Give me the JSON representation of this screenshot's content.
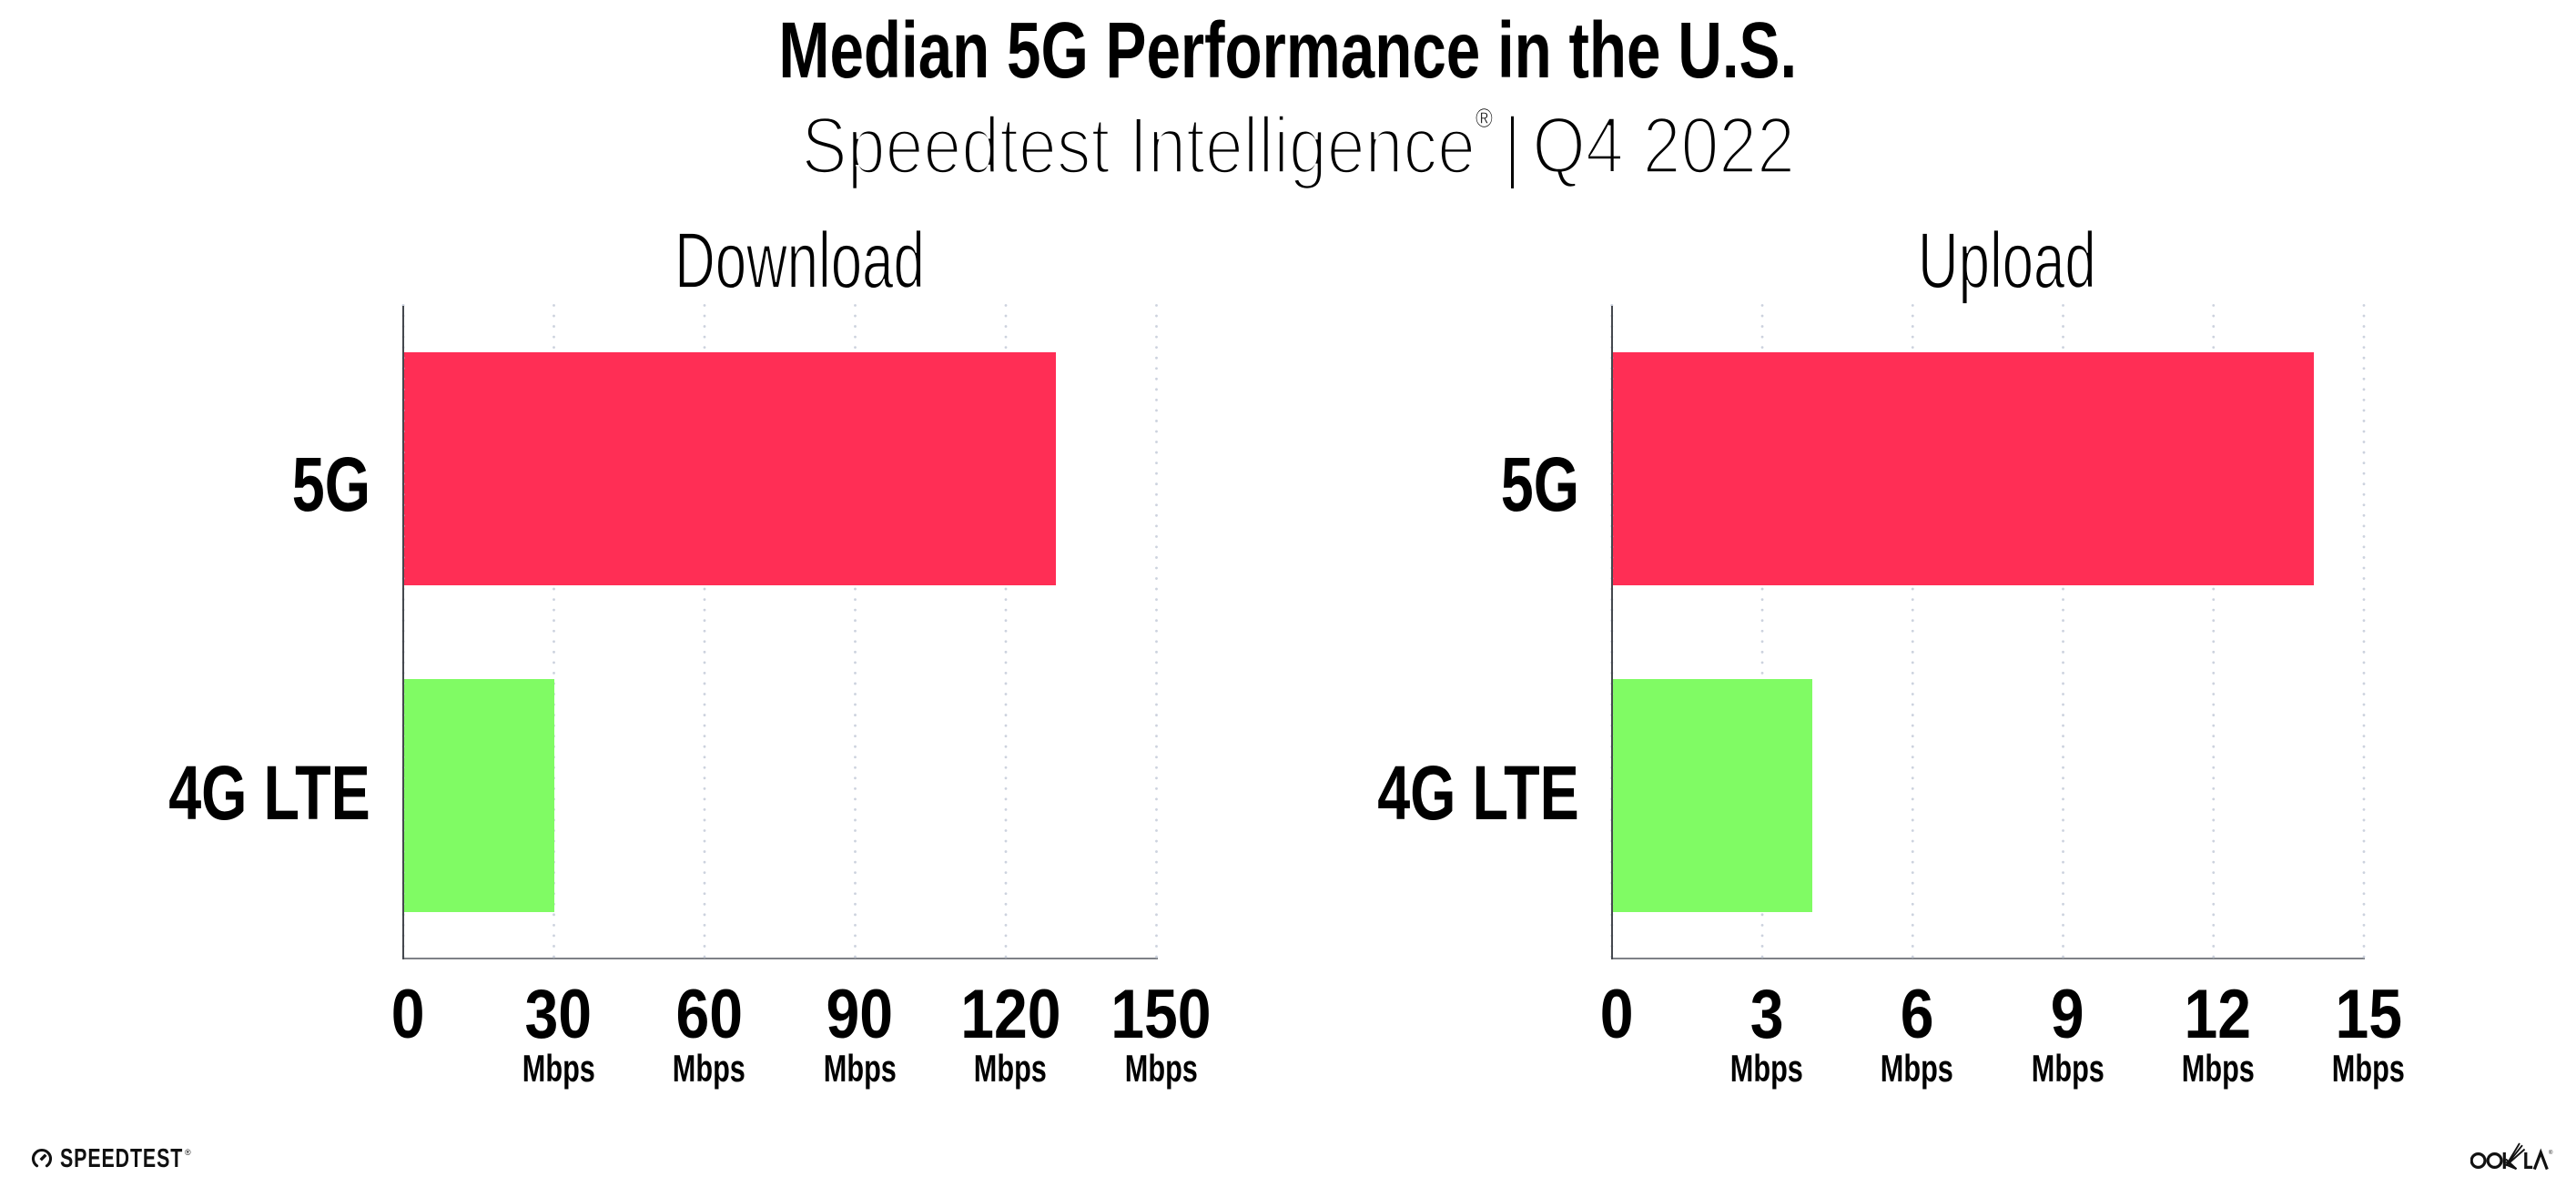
{
  "header": {
    "title": "Median 5G Performance in the U.S.",
    "subtitle_brand": "Speedtest Intelligence",
    "subtitle_reg": "®",
    "subtitle_separator": "|",
    "subtitle_period": "Q4 2022"
  },
  "chart_data": [
    {
      "type": "bar",
      "orientation": "horizontal",
      "title": "Download",
      "categories": [
        "5G",
        "4G LTE"
      ],
      "values": [
        130,
        30
      ],
      "unit": "Mbps",
      "xlim": [
        0,
        150
      ],
      "xticks": [
        0,
        30,
        60,
        90,
        120,
        150
      ],
      "xtick_unit": "Mbps",
      "bar_colors": [
        "#ff2e55",
        "#80fb64"
      ],
      "grid": "dotted-vertical-gridlines",
      "legend": false
    },
    {
      "type": "bar",
      "orientation": "horizontal",
      "title": "Upload",
      "categories": [
        "5G",
        "4G LTE"
      ],
      "values": [
        14,
        4
      ],
      "unit": "Mbps",
      "xlim": [
        0,
        15
      ],
      "xticks": [
        0,
        3,
        6,
        9,
        12,
        15
      ],
      "xtick_unit": "Mbps",
      "bar_colors": [
        "#ff2e55",
        "#80fb64"
      ],
      "grid": "dotted-vertical-gridlines",
      "legend": false
    }
  ],
  "colors": {
    "bar_5g": "#ff2e55",
    "bar_4g_lte": "#80fb64",
    "left_spine": "#45484e",
    "bottom_spine": "#7e8187",
    "gridline_dots": "#ccd2de",
    "text": "#000000",
    "background": "#ffffff"
  },
  "footer": {
    "speedtest_logo_text": "SPEEDTEST",
    "speedtest_reg": "®",
    "speedtest_icon": "speedtest-gauge-icon",
    "ookla_logo_text": "OOKLA",
    "ookla_reg": "®"
  }
}
